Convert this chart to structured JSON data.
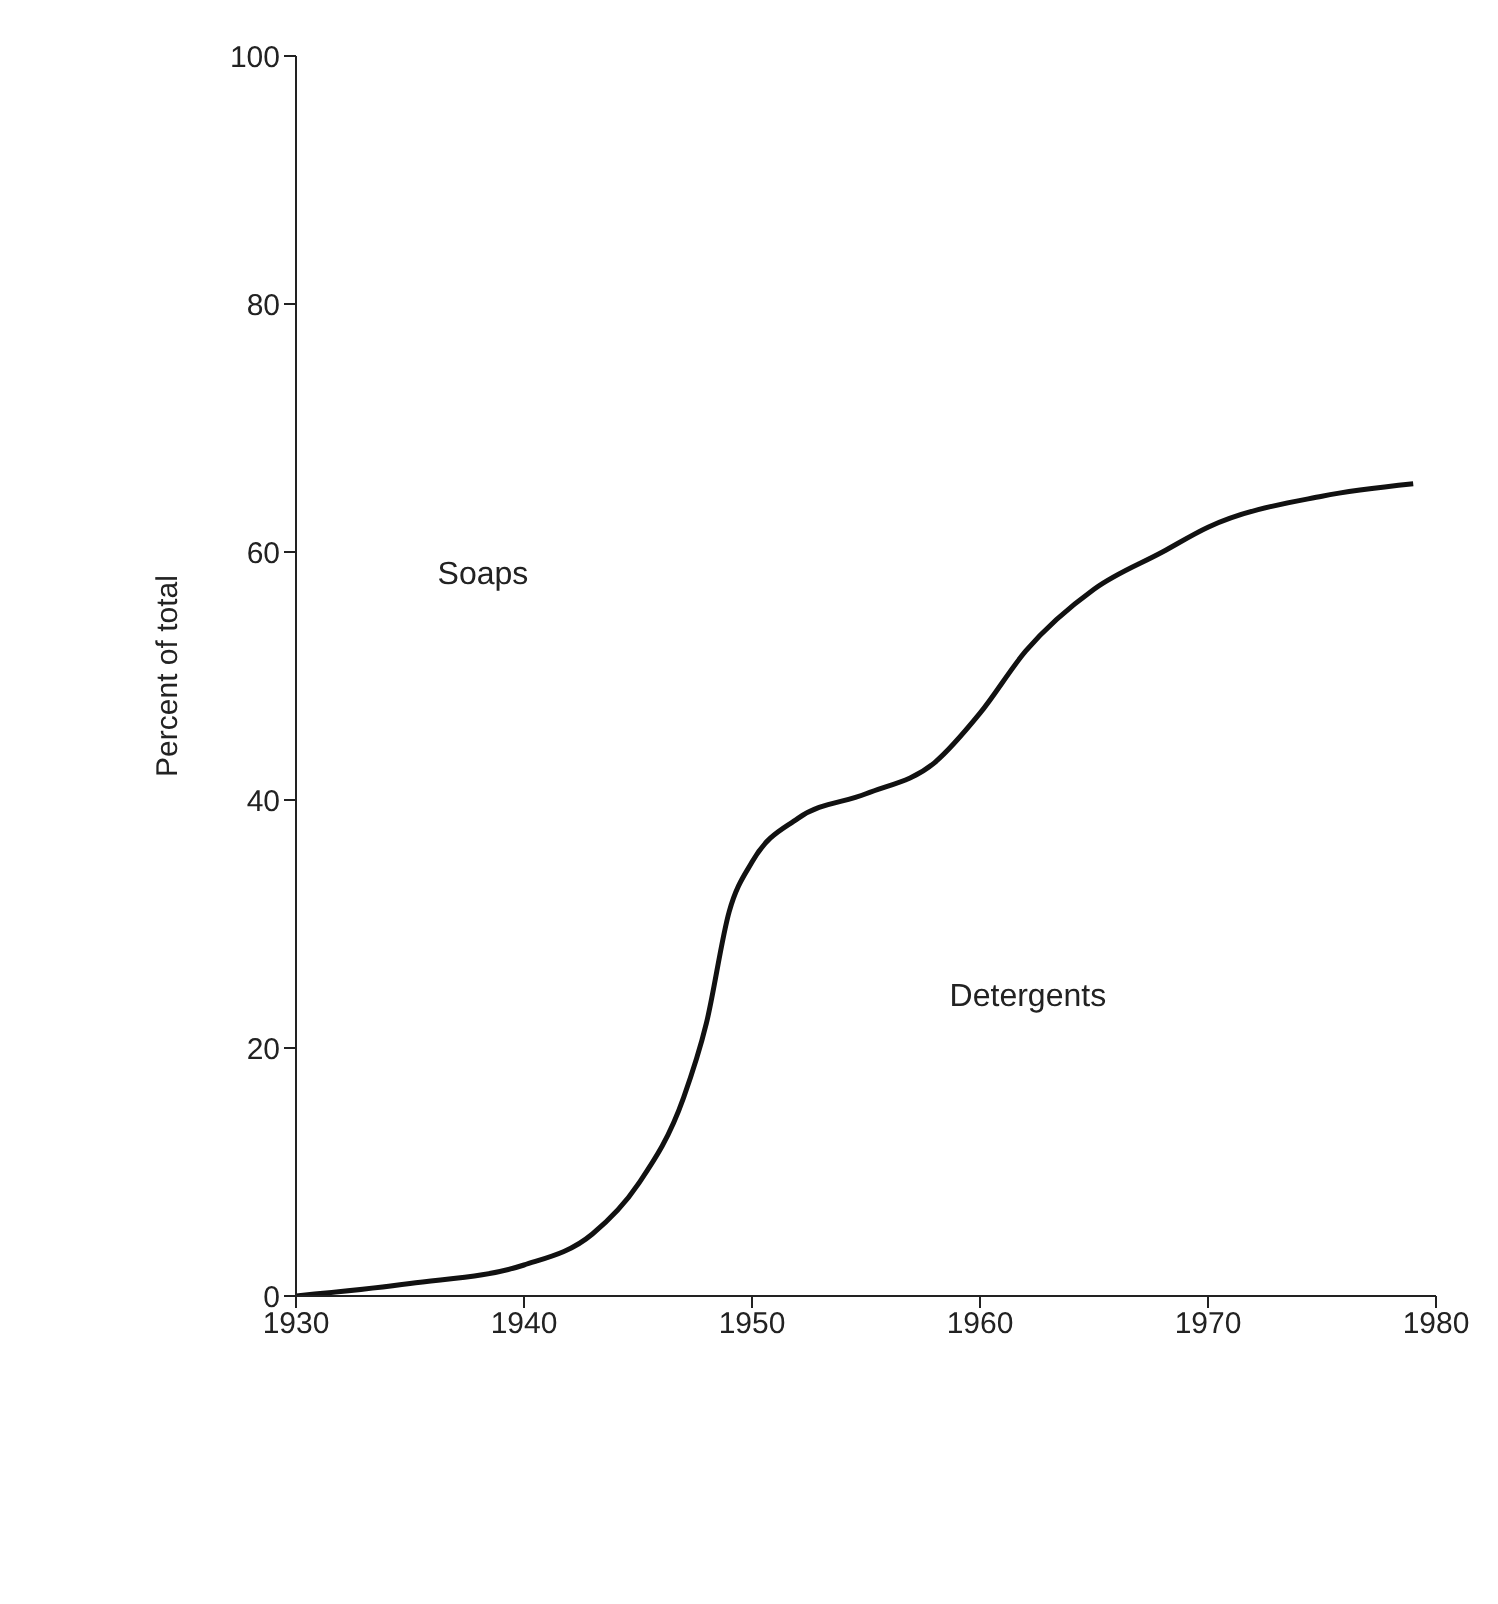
{
  "chart_data": {
    "type": "line",
    "ylabel": "Percent of total",
    "x": [
      1930,
      1935,
      1940,
      1943,
      1945,
      1947,
      1948,
      1949,
      1950,
      1952,
      1955,
      1958,
      1960,
      1962,
      1965,
      1968,
      1970,
      1975,
      1979
    ],
    "series": [
      {
        "color": "#111111",
        "values": [
          0,
          1,
          2.5,
          5,
          9,
          16,
          22,
          31,
          35,
          38.5,
          40.5,
          43,
          47,
          52,
          57,
          60,
          62,
          64.5,
          65.5
        ]
      }
    ],
    "xlim": [
      1930,
      1980
    ],
    "xticks": [
      1930,
      1940,
      1950,
      1960,
      1970,
      1980
    ],
    "ylim": [
      0,
      100
    ],
    "yticks": [
      0,
      20,
      40,
      60,
      80,
      100
    ],
    "grid": false,
    "marker": "none",
    "line_style": "solid",
    "annotations": [
      "Soaps",
      "Detergents"
    ]
  }
}
